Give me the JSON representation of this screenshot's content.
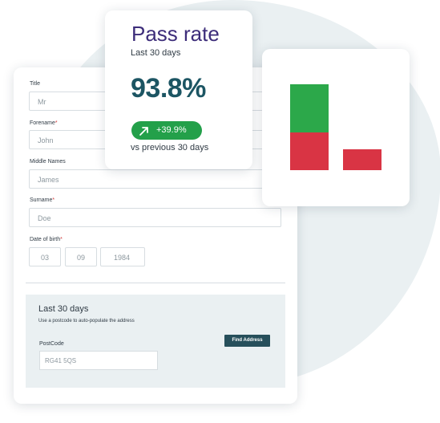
{
  "form": {
    "title_label": "Title",
    "title_value": "Mr",
    "forename_label": "Forename",
    "forename_value": "John",
    "middle_label": "Middle Names",
    "middle_value": "James",
    "surname_label": "Surname",
    "surname_value": "Doe",
    "dob_label": "Date of birth",
    "dob_day": "03",
    "dob_month": "09",
    "dob_year": "1984",
    "required_mark": "*"
  },
  "address": {
    "title": "Last 30 days",
    "help": "Use a postcode to auto-populate the address",
    "find_button": "Find Address",
    "postcode_label": "PostCode",
    "postcode_value": "RG41 5QS"
  },
  "pass_rate": {
    "title": "Pass rate",
    "subtitle": "Last 30 days",
    "value": "93.8%",
    "change": "+39.9%",
    "comparison": "vs previous 30 days"
  },
  "colors": {
    "brand_dark": "#1c5563",
    "title_purple": "#3d2d7a",
    "pass_green": "#2ca84a",
    "fail_red": "#d93444",
    "badge_green": "#23a04a"
  },
  "chart_data": {
    "type": "bar",
    "stacked": true,
    "categories": [
      "",
      ""
    ],
    "series": [
      {
        "values": [
          47,
          26
        ],
        "color": "#d93444"
      },
      {
        "values": [
          60,
          0
        ],
        "color": "#2ca84a"
      }
    ],
    "ylim": [
      0,
      107
    ],
    "grid": false
  }
}
